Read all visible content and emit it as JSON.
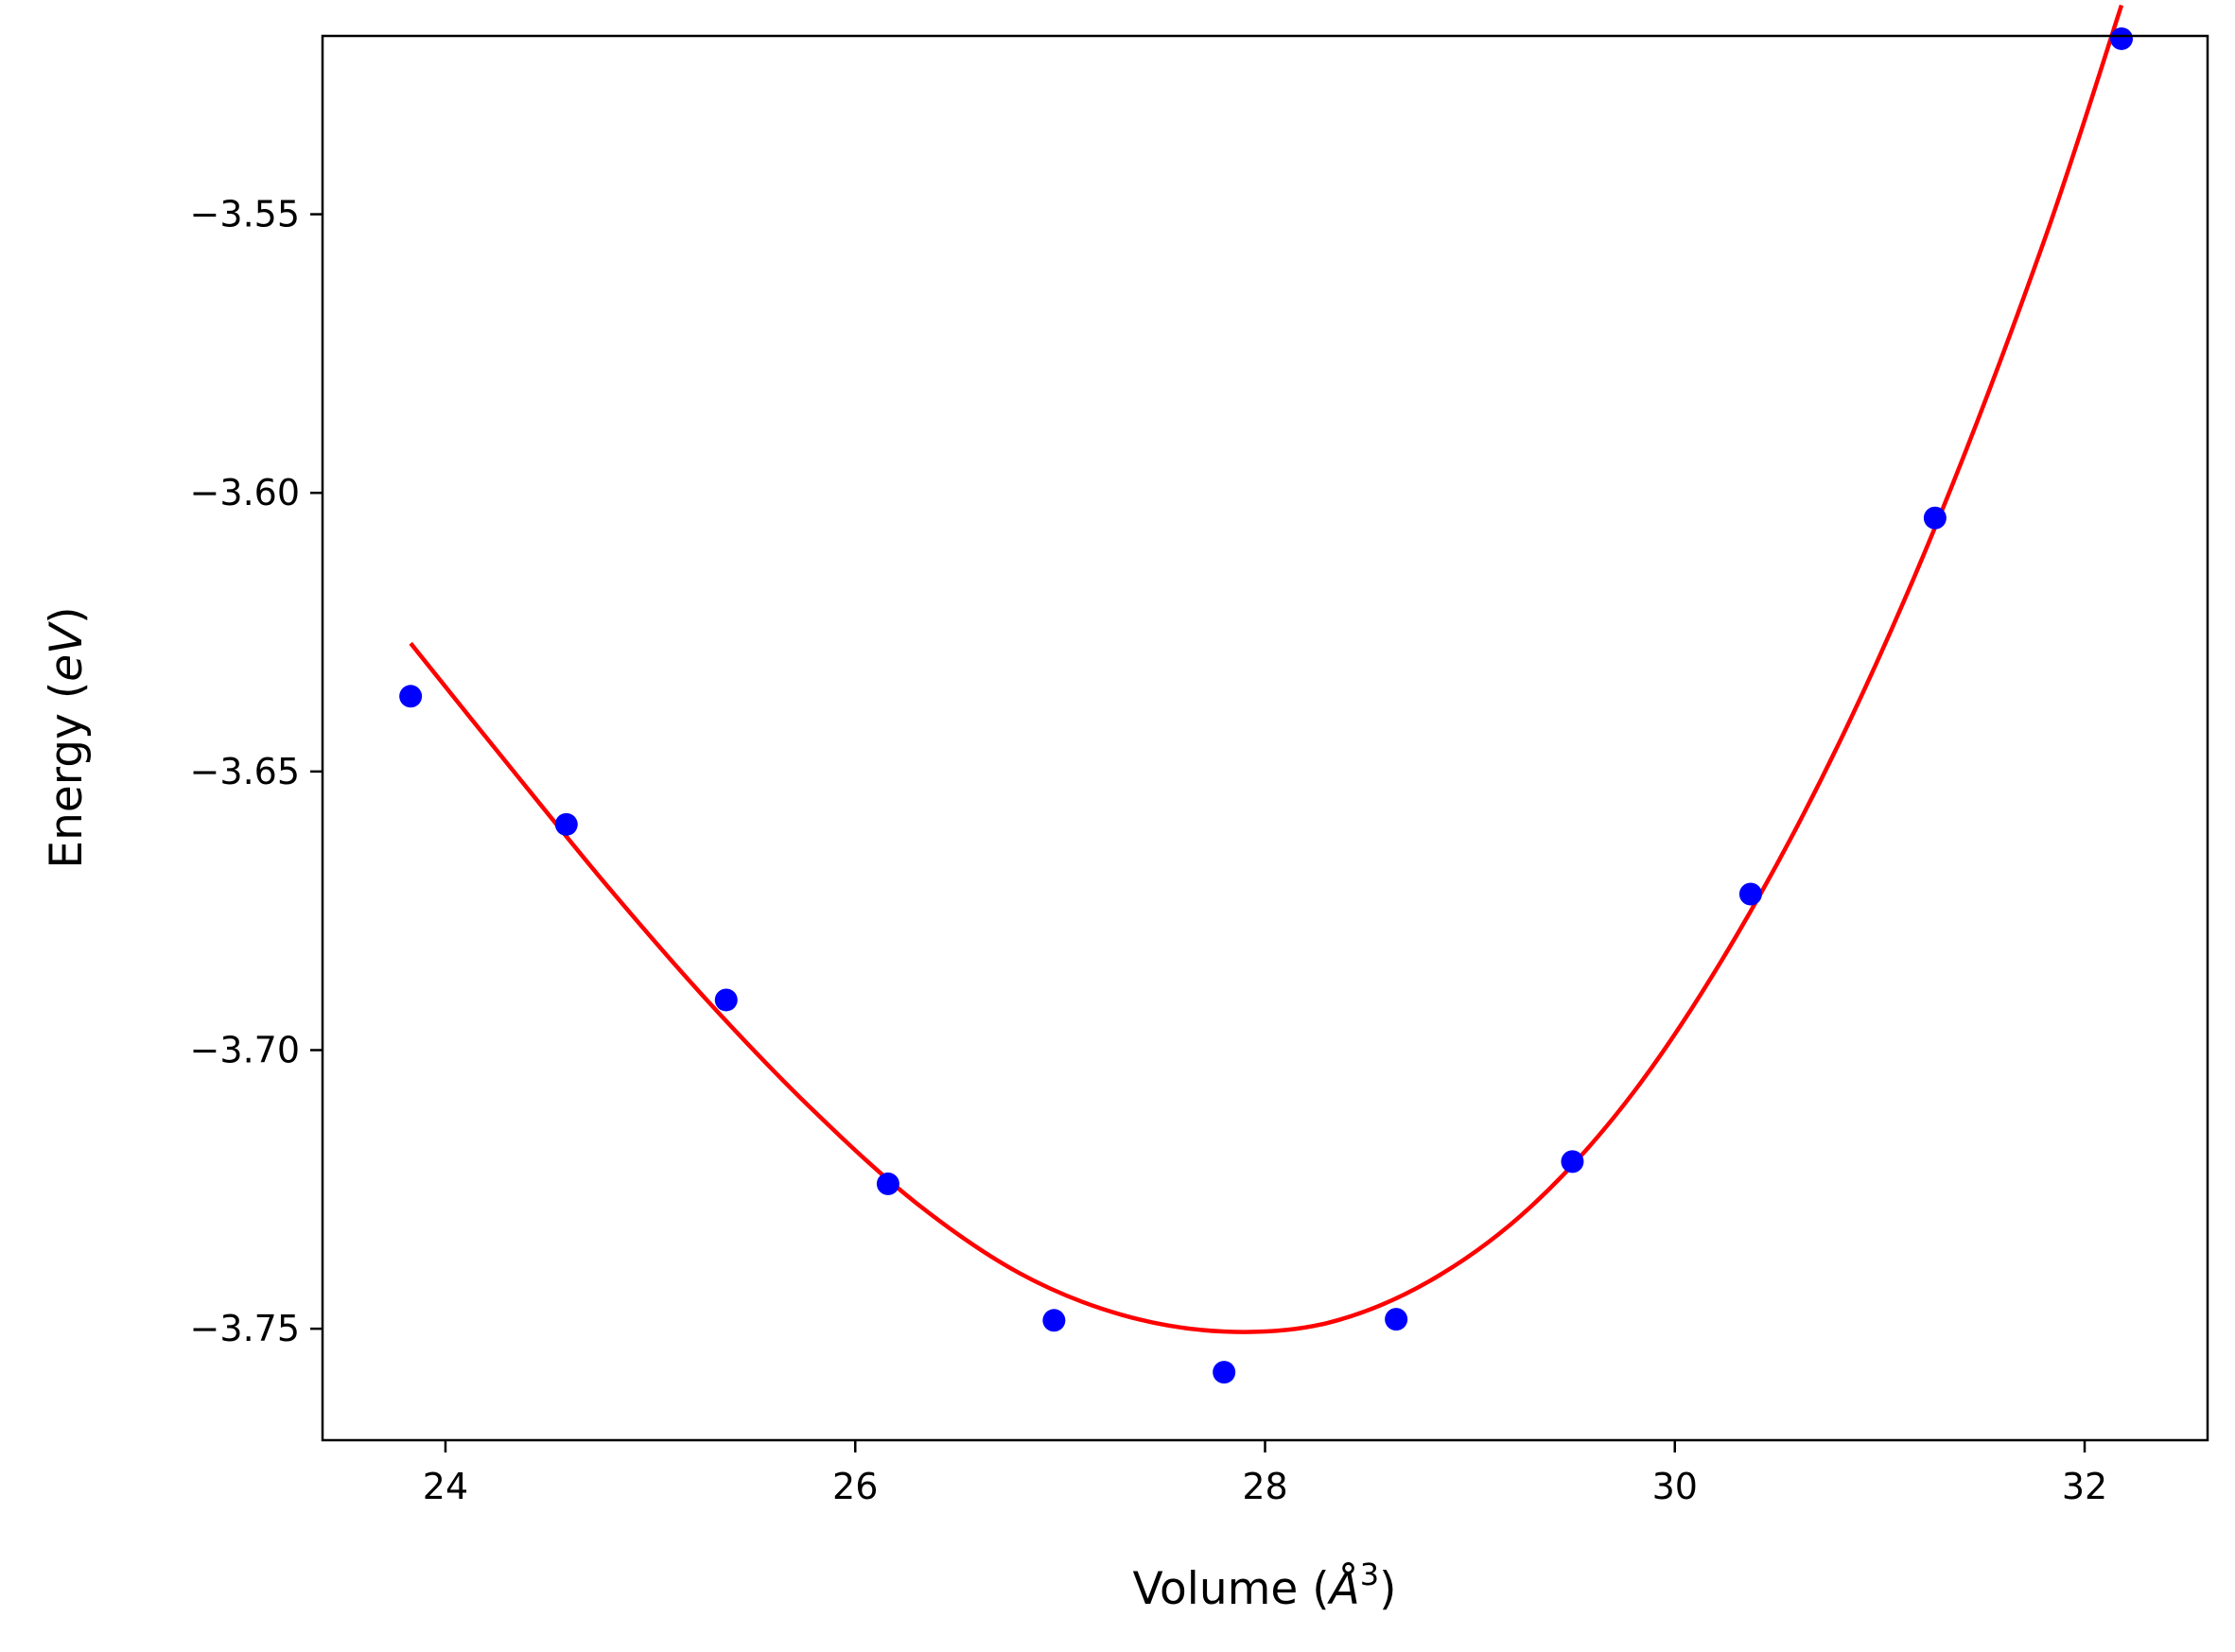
{
  "chart_data": {
    "type": "scatter",
    "title": "",
    "xlabel": {
      "prefix": "Volume (",
      "italic": "Å",
      "sup": "3",
      "suffix": ")"
    },
    "ylabel": {
      "prefix": "Energy (",
      "italic": "eV",
      "suffix": ")"
    },
    "xlim": [
      23.4,
      32.6
    ],
    "ylim": [
      -3.77,
      -3.518
    ],
    "xticks": [
      24,
      26,
      28,
      30,
      32
    ],
    "xtick_labels": [
      "24",
      "26",
      "28",
      "30",
      "32"
    ],
    "yticks": [
      -3.55,
      -3.6,
      -3.65,
      -3.7,
      -3.75
    ],
    "ytick_labels": [
      "−3.55",
      "−3.60",
      "−3.65",
      "−3.70",
      "−3.75"
    ],
    "grid": false,
    "legend": "none",
    "series": [
      {
        "kind": "points",
        "color": "#0000ff",
        "x": [
          23.83,
          24.59,
          25.37,
          26.16,
          26.97,
          27.8,
          28.64,
          29.5,
          30.37,
          31.27,
          32.18
        ],
        "y": [
          -3.6365,
          -3.6595,
          -3.691,
          -3.724,
          -3.7485,
          -3.7578,
          -3.7483,
          -3.72,
          -3.672,
          -3.6045,
          -3.5185
        ]
      },
      {
        "kind": "fit-curve",
        "color": "#ff0000",
        "x": [
          23.83,
          24.3,
          24.8,
          25.3,
          25.8,
          26.3,
          26.8,
          27.3,
          27.8,
          28.3,
          28.8,
          29.3,
          29.8,
          30.3,
          30.8,
          31.3,
          31.8,
          32.18
        ],
        "y": [
          -3.627,
          -3.6485,
          -3.671,
          -3.692,
          -3.711,
          -3.7275,
          -3.74,
          -3.7475,
          -3.7505,
          -3.749,
          -3.7415,
          -3.728,
          -3.7075,
          -3.6795,
          -3.645,
          -3.6035,
          -3.555,
          -3.5125
        ]
      }
    ]
  }
}
